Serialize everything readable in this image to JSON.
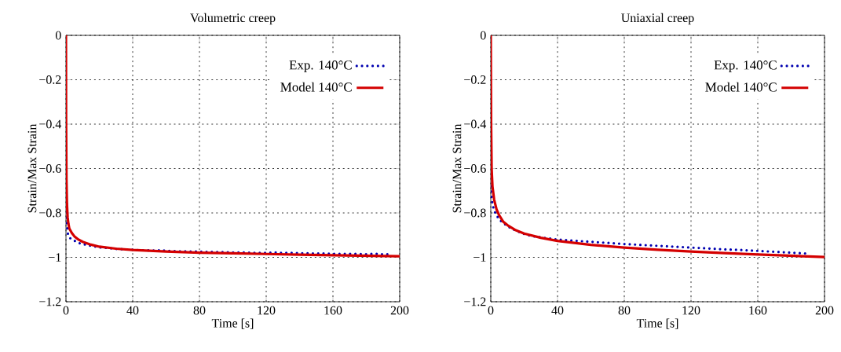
{
  "chart_data": [
    {
      "type": "line",
      "title": "Volumetric creep",
      "xlabel": "Time [s]",
      "ylabel": "Strain/Max Strain",
      "xlim": [
        0,
        200
      ],
      "xticks": [
        0,
        40,
        80,
        120,
        160,
        200
      ],
      "ylim": [
        -1.2,
        0
      ],
      "yticks": [
        {
          "value": -1.2,
          "label": "−1.2"
        },
        {
          "value": -1,
          "label": "−1"
        },
        {
          "value": -0.8,
          "label": "−0.8"
        },
        {
          "value": -0.6,
          "label": "−0.6"
        },
        {
          "value": -0.4,
          "label": "−0.4"
        },
        {
          "value": -0.2,
          "label": "−0.2"
        },
        0
      ],
      "grid": true,
      "legend": "top right",
      "marker": "none",
      "series": [
        {
          "name": "Exp. 140°C",
          "color": "#0000b0",
          "line_style": "dotted",
          "x": [
            0,
            0.5,
            1,
            2,
            3.5,
            5,
            7.5,
            10,
            12.5,
            15,
            20,
            25,
            30,
            35,
            40,
            45,
            50,
            55,
            57,
            60,
            65,
            70,
            75,
            80,
            85,
            90,
            95,
            100,
            105,
            110,
            115,
            120,
            125,
            130,
            135,
            140,
            145,
            150,
            155,
            160,
            165,
            170,
            175,
            180,
            185,
            190,
            195
          ],
          "values": [
            -0.75,
            -0.84,
            -0.89,
            -0.91,
            -0.92,
            -0.925,
            -0.935,
            -0.94,
            -0.944,
            -0.948,
            -0.955,
            -0.958,
            -0.962,
            -0.964,
            -0.966,
            -0.968,
            -0.969,
            -0.97,
            -0.966,
            -0.971,
            -0.972,
            -0.973,
            -0.974,
            -0.974,
            -0.976,
            -0.976,
            -0.977,
            -0.978,
            -0.978,
            -0.979,
            -0.98,
            -0.98,
            -0.978,
            -0.98,
            -0.98,
            -0.981,
            -0.982,
            -0.983,
            -0.983,
            -0.984,
            -0.985,
            -0.984,
            -0.985,
            -0.986,
            -0.984,
            -0.986,
            -0.986
          ]
        },
        {
          "name": "Model 140°C",
          "color": "#d40000",
          "line_style": "solid",
          "x": [
            0,
            0.1,
            0.3,
            0.6,
            1,
            1.5,
            2,
            3.5,
            5,
            7.5,
            10,
            15,
            20,
            30,
            40,
            60,
            80,
            100,
            120,
            140,
            160,
            180,
            200
          ],
          "values": [
            0,
            -0.4,
            -0.65,
            -0.76,
            -0.82,
            -0.85,
            -0.87,
            -0.89,
            -0.905,
            -0.92,
            -0.93,
            -0.943,
            -0.952,
            -0.961,
            -0.967,
            -0.974,
            -0.979,
            -0.982,
            -0.985,
            -0.988,
            -0.991,
            -0.993,
            -0.995
          ]
        }
      ]
    },
    {
      "type": "line",
      "title": "Uniaxial creep",
      "xlabel": "Time [s]",
      "ylabel": "Strain/Max Strain",
      "xlim": [
        0,
        200
      ],
      "xticks": [
        0,
        40,
        80,
        120,
        160,
        200
      ],
      "ylim": [
        -1.2,
        0
      ],
      "yticks": [
        {
          "value": -1.2,
          "label": "−1.2"
        },
        {
          "value": -1,
          "label": "−1"
        },
        {
          "value": -0.8,
          "label": "−0.8"
        },
        {
          "value": -0.6,
          "label": "−0.6"
        },
        {
          "value": -0.4,
          "label": "−0.4"
        },
        {
          "value": -0.2,
          "label": "−0.2"
        },
        0
      ],
      "grid": true,
      "legend": "top right",
      "marker": "none",
      "series": [
        {
          "name": "Exp. 140°C",
          "color": "#0000b0",
          "line_style": "dotted",
          "x": [
            0,
            0.5,
            1,
            2,
            3.5,
            5,
            7.5,
            10,
            15,
            20,
            25,
            30,
            35,
            40,
            50,
            60,
            70,
            80,
            90,
            100,
            110,
            120,
            130,
            140,
            150,
            160,
            170,
            180,
            190
          ],
          "values": [
            -0.68,
            -0.73,
            -0.76,
            -0.79,
            -0.81,
            -0.83,
            -0.845,
            -0.86,
            -0.88,
            -0.895,
            -0.905,
            -0.91,
            -0.915,
            -0.92,
            -0.925,
            -0.93,
            -0.935,
            -0.94,
            -0.944,
            -0.948,
            -0.952,
            -0.956,
            -0.96,
            -0.964,
            -0.967,
            -0.971,
            -0.975,
            -0.979,
            -0.983
          ]
        },
        {
          "name": "Model 140°C",
          "color": "#d40000",
          "line_style": "solid",
          "x": [
            0,
            0.2,
            0.5,
            1,
            2,
            3.5,
            5,
            7.5,
            10,
            15,
            20,
            30,
            40,
            60,
            80,
            100,
            120,
            140,
            160,
            180,
            200
          ],
          "values": [
            0,
            -0.4,
            -0.6,
            -0.68,
            -0.74,
            -0.785,
            -0.81,
            -0.84,
            -0.855,
            -0.878,
            -0.893,
            -0.912,
            -0.926,
            -0.944,
            -0.956,
            -0.966,
            -0.974,
            -0.981,
            -0.987,
            -0.993,
            -0.999
          ]
        }
      ]
    }
  ]
}
